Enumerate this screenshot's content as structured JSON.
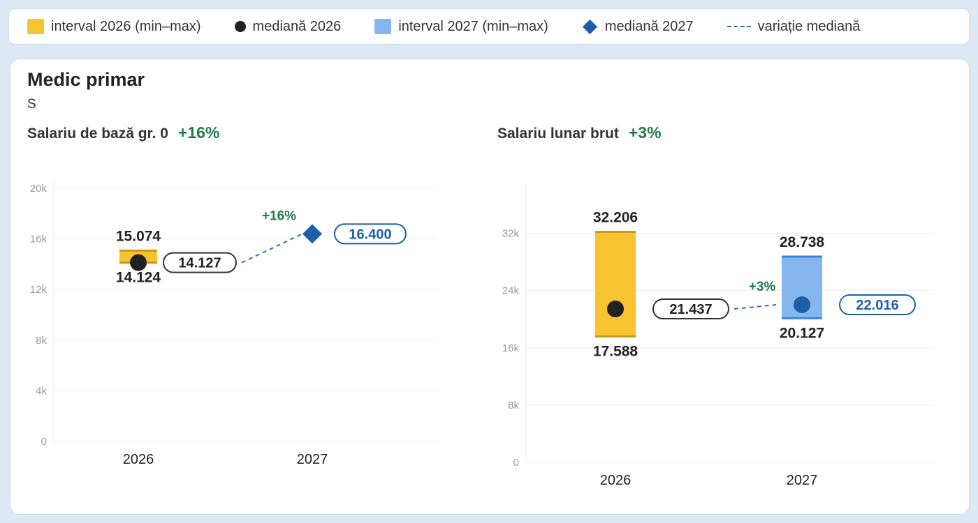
{
  "legend": {
    "items": [
      {
        "label": "interval 2026 (min–max)",
        "icon": "yellow-square",
        "color": "#f7c331"
      },
      {
        "label": "mediană 2026",
        "icon": "black-dot",
        "color": "#222222"
      },
      {
        "label": "interval 2027 (min–max)",
        "icon": "blue-square",
        "color": "#86b6ee"
      },
      {
        "label": "mediană 2027",
        "icon": "blue-diamond",
        "color": "#1f5fa8"
      },
      {
        "label": "variație mediană",
        "icon": "dashed-line",
        "color": "#2f6fb8"
      }
    ]
  },
  "card": {
    "title": "Medic primar",
    "subtitle": "S"
  },
  "colors": {
    "range2026": "#f7c331",
    "range2026_edge": "#c99a12",
    "range2027": "#86b6ee",
    "range2027_edge": "#3d86da",
    "median2026": "#222222",
    "median2027": "#1f5fa8",
    "change": "#1f7a4a",
    "dashed": "#2f6fb8"
  },
  "chart_data": [
    {
      "type": "range",
      "title": "Salariu de bază gr. 0",
      "change_label": "+16%",
      "categories": [
        "2026",
        "2027"
      ],
      "y_ticks": [
        "0",
        "4k",
        "8k",
        "12k",
        "16k",
        "20k"
      ],
      "ylim": [
        0,
        20000
      ],
      "grid": true,
      "series": [
        {
          "name": "2026",
          "min": 14124,
          "max": 15074,
          "median": 14127,
          "min_label": "14.124",
          "max_label": "15.074",
          "median_label": "14.127",
          "marker": "dot"
        },
        {
          "name": "2027",
          "min": null,
          "max": null,
          "median": 16400,
          "median_label": "16.400",
          "marker": "diamond"
        }
      ],
      "median_change_label": "+16%"
    },
    {
      "type": "range",
      "title": "Salariu lunar brut",
      "change_label": "+3%",
      "categories": [
        "2026",
        "2027"
      ],
      "y_ticks": [
        "0",
        "8k",
        "16k",
        "24k",
        "32k"
      ],
      "ylim": [
        0,
        38000
      ],
      "grid": true,
      "series": [
        {
          "name": "2026",
          "min": 17588,
          "max": 32206,
          "median": 21437,
          "min_label": "17.588",
          "max_label": "32.206",
          "median_label": "21.437",
          "marker": "dot"
        },
        {
          "name": "2027",
          "min": 20127,
          "max": 28738,
          "median": 22016,
          "min_label": "20.127",
          "max_label": "28.738",
          "median_label": "22.016",
          "marker": "dot"
        }
      ],
      "median_change_label": "+3%"
    }
  ]
}
